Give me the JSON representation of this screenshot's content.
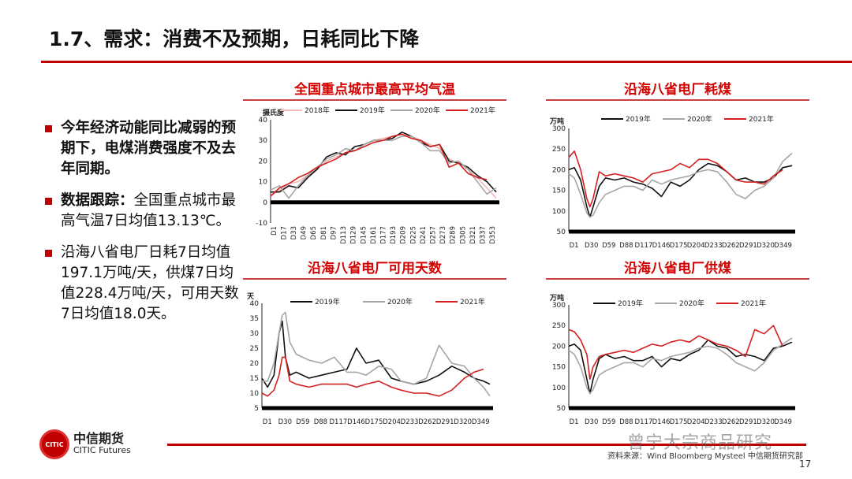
{
  "page": {
    "title": "1.7、需求：消费不及预期，日耗同比下降",
    "page_number": "17",
    "source": "资料来源：Wind Bloomberg Mysteel 中信期货研究部",
    "watermark": "曾宁大宗商品研究",
    "logo": {
      "cn": "中信期货",
      "en": "CITIC Futures"
    },
    "accent_color": "#c00000"
  },
  "bullets": [
    {
      "bold": "今年经济动能同比减弱的预期下，电煤消费强度不及去年同期。",
      "normal": ""
    },
    {
      "bold": "数据跟踪：",
      "normal": "全国重点城市最高气温7日均值13.13℃。"
    },
    {
      "bold": "",
      "normal": "沿海八省电厂日耗7日均值197.1万吨/天，供煤7日均值228.4万吨/天，可用天数7日均值18.0天。"
    }
  ],
  "chart_data": [
    {
      "type": "line",
      "title": "全国重点城市最高平均气温",
      "ylabel": "摄氏度",
      "ylim": [
        -10,
        40
      ],
      "yticks": [
        -10,
        0,
        10,
        20,
        30,
        40
      ],
      "xticks": [
        "D1",
        "D17",
        "D33",
        "D49",
        "D65",
        "D81",
        "D97",
        "D113",
        "D129",
        "D145",
        "D161",
        "D177",
        "D193",
        "D209",
        "D225",
        "D241",
        "D257",
        "D273",
        "D289",
        "D305",
        "D321",
        "D337",
        "D353"
      ],
      "xlim": [
        1,
        365
      ],
      "legend": "top",
      "x": [
        1,
        15,
        30,
        45,
        60,
        75,
        90,
        105,
        120,
        135,
        150,
        165,
        180,
        195,
        210,
        225,
        240,
        255,
        270,
        285,
        300,
        315,
        330,
        345,
        360
      ],
      "series": [
        {
          "name": "2018年",
          "color": "#f2b8b8",
          "values": [
            3,
            6,
            9,
            10,
            13,
            16,
            20,
            22,
            24,
            27,
            28,
            30,
            31,
            32,
            33,
            32,
            30,
            28,
            26,
            21,
            19,
            16,
            12,
            7,
            2
          ]
        },
        {
          "name": "2019年",
          "color": "#111111",
          "values": [
            5,
            5,
            8,
            7,
            12,
            16,
            22,
            24,
            23,
            27,
            28,
            30,
            30,
            31,
            34,
            32,
            29,
            27,
            28,
            20,
            19,
            17,
            13,
            10,
            5
          ]
        },
        {
          "name": "2020年",
          "color": "#a6a6a6",
          "values": [
            6,
            8,
            2,
            8,
            13,
            17,
            21,
            23,
            26,
            25,
            28,
            30,
            30,
            30,
            32,
            32,
            29,
            25,
            25,
            19,
            20,
            16,
            10,
            4,
            7
          ]
        },
        {
          "name": "2021年",
          "color": "#d42020",
          "values": [
            3,
            7,
            9,
            12,
            14,
            17,
            19,
            21,
            24,
            25,
            27,
            29,
            30,
            32,
            33,
            31,
            30,
            27,
            28,
            17,
            19,
            14,
            12,
            11,
            null
          ]
        }
      ]
    },
    {
      "type": "line",
      "title": "沿海八省电厂耗煤",
      "ylabel": "万吨",
      "ylim": [
        50,
        300
      ],
      "yticks": [
        50,
        100,
        150,
        200,
        250,
        300
      ],
      "xticks": [
        "D1",
        "D30",
        "D59",
        "D88",
        "D117",
        "D146",
        "D175",
        "D204",
        "D233",
        "D262",
        "D291",
        "D320",
        "D349"
      ],
      "xlim": [
        1,
        365
      ],
      "legend": "top",
      "x": [
        1,
        10,
        20,
        30,
        35,
        40,
        50,
        60,
        75,
        90,
        105,
        120,
        135,
        150,
        165,
        180,
        195,
        210,
        225,
        240,
        255,
        270,
        285,
        300,
        315,
        330,
        345,
        360
      ],
      "series": [
        {
          "name": "2019年",
          "color": "#111111",
          "values": [
            200,
            205,
            175,
            110,
            85,
            110,
            160,
            180,
            175,
            180,
            170,
            165,
            155,
            135,
            170,
            160,
            175,
            200,
            215,
            210,
            195,
            175,
            180,
            170,
            170,
            180,
            205,
            210
          ]
        },
        {
          "name": "2020年",
          "color": "#a6a6a6",
          "values": [
            190,
            180,
            140,
            95,
            85,
            90,
            120,
            140,
            150,
            160,
            160,
            150,
            175,
            165,
            175,
            180,
            185,
            195,
            200,
            195,
            170,
            140,
            130,
            150,
            160,
            180,
            220,
            240
          ]
        },
        {
          "name": "2021年",
          "color": "#d42020",
          "values": [
            230,
            245,
            200,
            130,
            110,
            130,
            195,
            185,
            190,
            185,
            180,
            170,
            190,
            195,
            200,
            215,
            205,
            225,
            225,
            215,
            195,
            175,
            170,
            170,
            165,
            185,
            200,
            null
          ]
        }
      ]
    },
    {
      "type": "line",
      "title": "沿海八省电厂可用天数",
      "ylabel": "天",
      "ylim": [
        5,
        40
      ],
      "yticks": [
        5,
        10,
        15,
        20,
        25,
        30,
        35,
        40
      ],
      "xticks": [
        "D1",
        "D30",
        "D59",
        "D88",
        "D117",
        "D146",
        "D175",
        "D204",
        "D233",
        "D262",
        "D291",
        "D320",
        "D349"
      ],
      "xlim": [
        1,
        365
      ],
      "legend": "top",
      "x": [
        1,
        10,
        20,
        28,
        33,
        38,
        45,
        55,
        75,
        95,
        115,
        135,
        150,
        165,
        185,
        205,
        220,
        240,
        260,
        280,
        300,
        320,
        335,
        350,
        360
      ],
      "series": [
        {
          "name": "2019年",
          "color": "#111111",
          "values": [
            15,
            12,
            16,
            30,
            34,
            22,
            16,
            17,
            15,
            16,
            17,
            18,
            25,
            20,
            21,
            15,
            14,
            13,
            14,
            16,
            19,
            17,
            15,
            14,
            13
          ]
        },
        {
          "name": "2020年",
          "color": "#a6a6a6",
          "values": [
            14,
            14,
            20,
            30,
            36,
            37,
            27,
            23,
            21,
            20,
            22,
            17,
            17,
            16,
            19,
            18,
            14,
            13,
            15,
            26,
            20,
            19,
            15,
            12,
            9
          ]
        },
        {
          "name": "2021年",
          "color": "#d42020",
          "values": [
            10,
            9,
            11,
            16,
            22,
            22,
            14,
            13,
            12,
            13,
            13,
            13,
            12,
            13,
            14,
            12,
            11,
            10,
            10,
            9,
            11,
            15,
            17,
            18,
            null
          ]
        }
      ]
    },
    {
      "type": "line",
      "title": "沿海八省电厂供煤",
      "ylabel": "万吨",
      "ylim": [
        50,
        300
      ],
      "yticks": [
        50,
        100,
        150,
        200,
        250,
        300
      ],
      "xticks": [
        "D1",
        "D30",
        "D59",
        "D88",
        "D117",
        "D146",
        "D175",
        "D204",
        "D233",
        "D262",
        "D291",
        "D320",
        "D349"
      ],
      "xlim": [
        1,
        365
      ],
      "legend": "top",
      "x": [
        1,
        10,
        20,
        30,
        35,
        40,
        50,
        60,
        75,
        90,
        105,
        120,
        135,
        150,
        165,
        180,
        195,
        210,
        225,
        240,
        255,
        270,
        285,
        300,
        315,
        330,
        345,
        360
      ],
      "series": [
        {
          "name": "2019年",
          "color": "#111111",
          "values": [
            200,
            205,
            190,
            120,
            85,
            120,
            170,
            180,
            170,
            175,
            165,
            165,
            175,
            150,
            170,
            165,
            180,
            190,
            215,
            200,
            195,
            175,
            180,
            175,
            165,
            195,
            200,
            210
          ]
        },
        {
          "name": "2020年",
          "color": "#a6a6a6",
          "values": [
            190,
            180,
            150,
            100,
            85,
            95,
            130,
            140,
            150,
            160,
            160,
            150,
            170,
            165,
            175,
            180,
            185,
            195,
            200,
            195,
            180,
            160,
            150,
            140,
            160,
            190,
            205,
            220
          ]
        },
        {
          "name": "2021年",
          "color": "#d42020",
          "values": [
            240,
            235,
            215,
            180,
            120,
            150,
            175,
            180,
            185,
            190,
            185,
            195,
            205,
            200,
            210,
            215,
            210,
            225,
            215,
            205,
            200,
            190,
            175,
            240,
            230,
            250,
            200,
            null
          ]
        }
      ]
    }
  ]
}
